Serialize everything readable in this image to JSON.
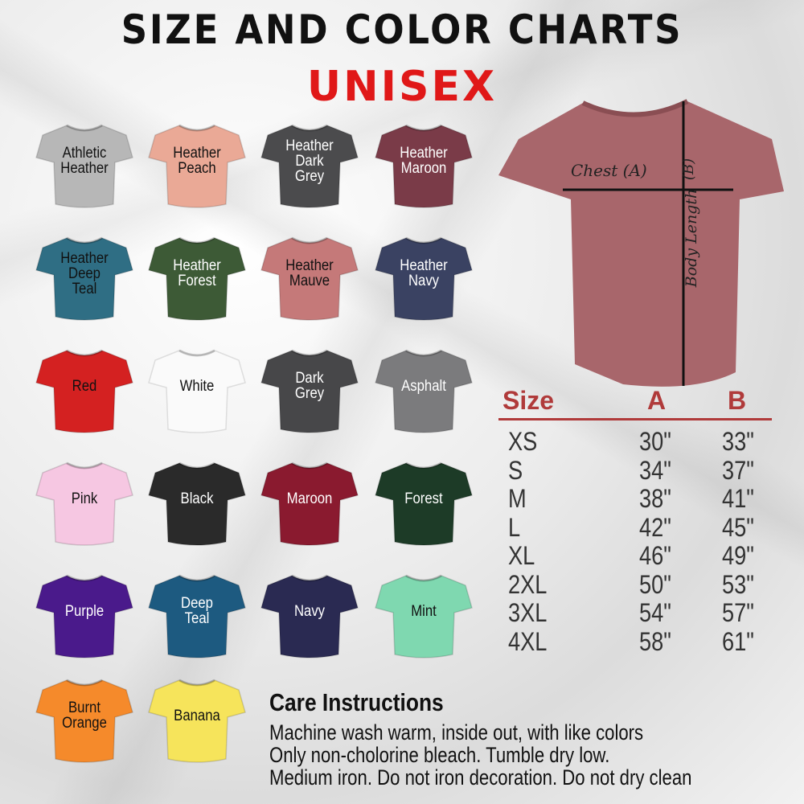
{
  "title": "SIZE AND COLOR CHARTS",
  "subtitle": "UNISEX",
  "colors": [
    {
      "name": "Athletic\nHeather",
      "hex": "#b7b7b7",
      "text": "#111111"
    },
    {
      "name": "Heather\nPeach",
      "hex": "#eaa996",
      "text": "#111111"
    },
    {
      "name": "Heather\nDark\nGrey",
      "hex": "#4b4b4d",
      "text": "#ffffff"
    },
    {
      "name": "Heather\nMaroon",
      "hex": "#7a3b48",
      "text": "#ffffff"
    },
    {
      "name": "Heather\nDeep\nTeal",
      "hex": "#2f6e84",
      "text": "#111111"
    },
    {
      "name": "Heather\nForest",
      "hex": "#3d5a36",
      "text": "#ffffff"
    },
    {
      "name": "Heather\nMauve",
      "hex": "#c57979",
      "text": "#111111"
    },
    {
      "name": "Heather\nNavy",
      "hex": "#3a4262",
      "text": "#ffffff"
    },
    {
      "name": "Red",
      "hex": "#d42121",
      "text": "#111111"
    },
    {
      "name": "White",
      "hex": "#fafafa",
      "text": "#111111"
    },
    {
      "name": "Dark\nGrey",
      "hex": "#474749",
      "text": "#ffffff"
    },
    {
      "name": "Asphalt",
      "hex": "#7b7b7d",
      "text": "#ffffff"
    },
    {
      "name": "Pink",
      "hex": "#f6c7e2",
      "text": "#111111"
    },
    {
      "name": "Black",
      "hex": "#2a2a2a",
      "text": "#ffffff"
    },
    {
      "name": "Maroon",
      "hex": "#8a1a2f",
      "text": "#ffffff"
    },
    {
      "name": "Forest",
      "hex": "#1d3b27",
      "text": "#ffffff"
    },
    {
      "name": "Purple",
      "hex": "#4a1a8b",
      "text": "#ffffff"
    },
    {
      "name": "Deep\nTeal",
      "hex": "#1d5a80",
      "text": "#ffffff"
    },
    {
      "name": "Navy",
      "hex": "#2a2a52",
      "text": "#ffffff"
    },
    {
      "name": "Mint",
      "hex": "#7fd8b0",
      "text": "#111111"
    },
    {
      "name": "Burnt\nOrange",
      "hex": "#f58a2b",
      "text": "#111111"
    },
    {
      "name": "Banana",
      "hex": "#f6e45b",
      "text": "#111111"
    }
  ],
  "diagram": {
    "shirt_hex": "#a8666b",
    "chest_label": "Chest (A)",
    "length_label": "Body Length",
    "length_mark": "(B)"
  },
  "size_table": {
    "headers": [
      "Size",
      "A",
      "B"
    ],
    "accent": "#b03a3a",
    "rows": [
      [
        "XS",
        "30\"",
        "33\""
      ],
      [
        "S",
        "34\"",
        "37\""
      ],
      [
        "M",
        "38\"",
        "41\""
      ],
      [
        "L",
        "42\"",
        "45\""
      ],
      [
        "XL",
        "46\"",
        "49\""
      ],
      [
        "2XL",
        "50\"",
        "53\""
      ],
      [
        "3XL",
        "54\"",
        "57\""
      ],
      [
        "4XL",
        "58\"",
        "61\""
      ]
    ]
  },
  "care": {
    "heading": "Care Instructions",
    "lines": [
      "Machine wash warm, inside out, with like colors",
      "Only non-cholorine bleach. Tumble dry low.",
      "Medium iron. Do not iron decoration. Do not dry clean"
    ]
  }
}
